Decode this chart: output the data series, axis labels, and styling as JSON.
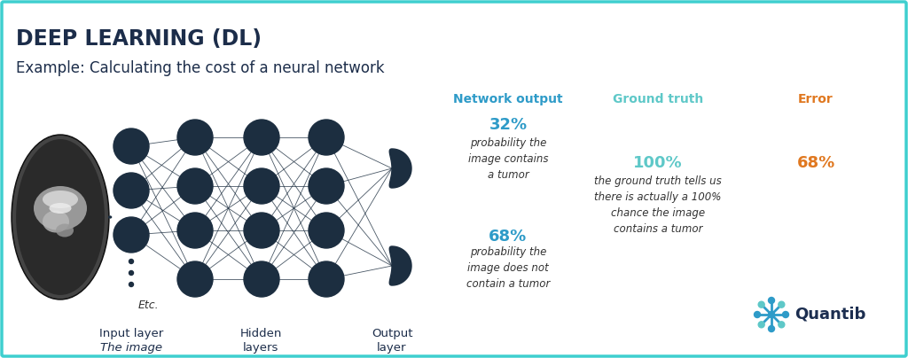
{
  "title": "DEEP LEARNING (DL)",
  "subtitle": "Example: Calculating the cost of a neural network",
  "title_color": "#1c2d4a",
  "subtitle_color": "#1c2d4a",
  "bg_color": "#ffffff",
  "border_color": "#3ecfcf",
  "node_color": "#1c2e40",
  "network_output_label": "Network output",
  "ground_truth_label": "Ground truth",
  "error_label": "Error",
  "network_output_color": "#2e9bc8",
  "ground_truth_color": "#5ec8c8",
  "error_color": "#e07820",
  "output1_pct": "32%",
  "output1_desc": "probability the\nimage contains\na tumor",
  "output2_pct": "68%",
  "output2_desc": "probability the\nimage does not\ncontain a tumor",
  "gt_pct": "100%",
  "gt_desc": "the ground truth tells us\nthere is actually a 100%\nchance the image\ncontains a tumor",
  "error_pct": "68%",
  "input_label": "Input layer",
  "input_sublabel": "The image",
  "hidden_label": "Hidden\nlayers",
  "output_label": "Output\nlayer",
  "etc_label": "Etc.",
  "quantib_text_color": "#1c2e50",
  "quantib_teal": "#2e9bc8",
  "quantib_teal2": "#5ec8c8"
}
